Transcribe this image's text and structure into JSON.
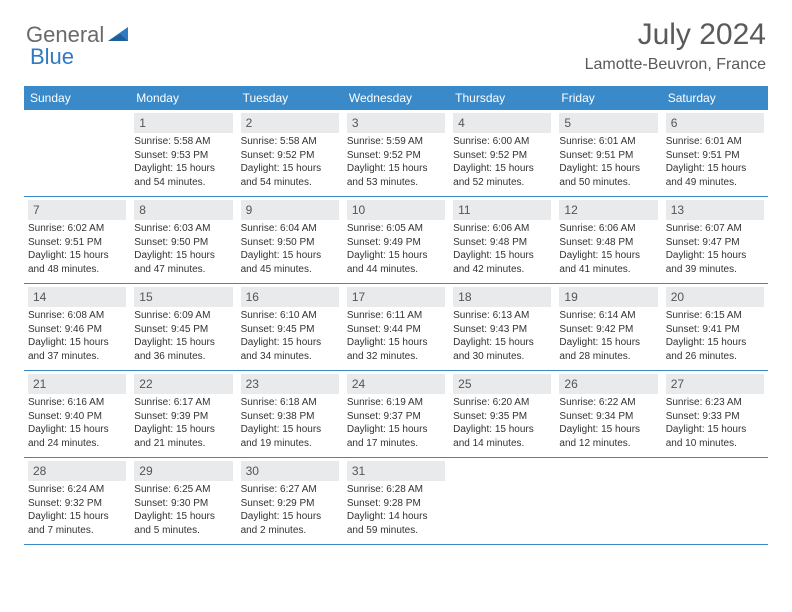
{
  "logo": {
    "part1": "General",
    "part2": "Blue"
  },
  "title": "July 2024",
  "subtitle": "Lamotte-Beuvron, France",
  "colors": {
    "header_bg": "#3a89c9",
    "header_text": "#ffffff",
    "daynum_bg": "#e9eaec",
    "border": "#3a89c9",
    "logo_gray": "#6a6a6a",
    "logo_blue": "#2f7bc2"
  },
  "day_names": [
    "Sunday",
    "Monday",
    "Tuesday",
    "Wednesday",
    "Thursday",
    "Friday",
    "Saturday"
  ],
  "weeks": [
    [
      null,
      {
        "n": "1",
        "sr": "Sunrise: 5:58 AM",
        "ss": "Sunset: 9:53 PM",
        "dl1": "Daylight: 15 hours",
        "dl2": "and 54 minutes."
      },
      {
        "n": "2",
        "sr": "Sunrise: 5:58 AM",
        "ss": "Sunset: 9:52 PM",
        "dl1": "Daylight: 15 hours",
        "dl2": "and 54 minutes."
      },
      {
        "n": "3",
        "sr": "Sunrise: 5:59 AM",
        "ss": "Sunset: 9:52 PM",
        "dl1": "Daylight: 15 hours",
        "dl2": "and 53 minutes."
      },
      {
        "n": "4",
        "sr": "Sunrise: 6:00 AM",
        "ss": "Sunset: 9:52 PM",
        "dl1": "Daylight: 15 hours",
        "dl2": "and 52 minutes."
      },
      {
        "n": "5",
        "sr": "Sunrise: 6:01 AM",
        "ss": "Sunset: 9:51 PM",
        "dl1": "Daylight: 15 hours",
        "dl2": "and 50 minutes."
      },
      {
        "n": "6",
        "sr": "Sunrise: 6:01 AM",
        "ss": "Sunset: 9:51 PM",
        "dl1": "Daylight: 15 hours",
        "dl2": "and 49 minutes."
      }
    ],
    [
      {
        "n": "7",
        "sr": "Sunrise: 6:02 AM",
        "ss": "Sunset: 9:51 PM",
        "dl1": "Daylight: 15 hours",
        "dl2": "and 48 minutes."
      },
      {
        "n": "8",
        "sr": "Sunrise: 6:03 AM",
        "ss": "Sunset: 9:50 PM",
        "dl1": "Daylight: 15 hours",
        "dl2": "and 47 minutes."
      },
      {
        "n": "9",
        "sr": "Sunrise: 6:04 AM",
        "ss": "Sunset: 9:50 PM",
        "dl1": "Daylight: 15 hours",
        "dl2": "and 45 minutes."
      },
      {
        "n": "10",
        "sr": "Sunrise: 6:05 AM",
        "ss": "Sunset: 9:49 PM",
        "dl1": "Daylight: 15 hours",
        "dl2": "and 44 minutes."
      },
      {
        "n": "11",
        "sr": "Sunrise: 6:06 AM",
        "ss": "Sunset: 9:48 PM",
        "dl1": "Daylight: 15 hours",
        "dl2": "and 42 minutes."
      },
      {
        "n": "12",
        "sr": "Sunrise: 6:06 AM",
        "ss": "Sunset: 9:48 PM",
        "dl1": "Daylight: 15 hours",
        "dl2": "and 41 minutes."
      },
      {
        "n": "13",
        "sr": "Sunrise: 6:07 AM",
        "ss": "Sunset: 9:47 PM",
        "dl1": "Daylight: 15 hours",
        "dl2": "and 39 minutes."
      }
    ],
    [
      {
        "n": "14",
        "sr": "Sunrise: 6:08 AM",
        "ss": "Sunset: 9:46 PM",
        "dl1": "Daylight: 15 hours",
        "dl2": "and 37 minutes."
      },
      {
        "n": "15",
        "sr": "Sunrise: 6:09 AM",
        "ss": "Sunset: 9:45 PM",
        "dl1": "Daylight: 15 hours",
        "dl2": "and 36 minutes."
      },
      {
        "n": "16",
        "sr": "Sunrise: 6:10 AM",
        "ss": "Sunset: 9:45 PM",
        "dl1": "Daylight: 15 hours",
        "dl2": "and 34 minutes."
      },
      {
        "n": "17",
        "sr": "Sunrise: 6:11 AM",
        "ss": "Sunset: 9:44 PM",
        "dl1": "Daylight: 15 hours",
        "dl2": "and 32 minutes."
      },
      {
        "n": "18",
        "sr": "Sunrise: 6:13 AM",
        "ss": "Sunset: 9:43 PM",
        "dl1": "Daylight: 15 hours",
        "dl2": "and 30 minutes."
      },
      {
        "n": "19",
        "sr": "Sunrise: 6:14 AM",
        "ss": "Sunset: 9:42 PM",
        "dl1": "Daylight: 15 hours",
        "dl2": "and 28 minutes."
      },
      {
        "n": "20",
        "sr": "Sunrise: 6:15 AM",
        "ss": "Sunset: 9:41 PM",
        "dl1": "Daylight: 15 hours",
        "dl2": "and 26 minutes."
      }
    ],
    [
      {
        "n": "21",
        "sr": "Sunrise: 6:16 AM",
        "ss": "Sunset: 9:40 PM",
        "dl1": "Daylight: 15 hours",
        "dl2": "and 24 minutes."
      },
      {
        "n": "22",
        "sr": "Sunrise: 6:17 AM",
        "ss": "Sunset: 9:39 PM",
        "dl1": "Daylight: 15 hours",
        "dl2": "and 21 minutes."
      },
      {
        "n": "23",
        "sr": "Sunrise: 6:18 AM",
        "ss": "Sunset: 9:38 PM",
        "dl1": "Daylight: 15 hours",
        "dl2": "and 19 minutes."
      },
      {
        "n": "24",
        "sr": "Sunrise: 6:19 AM",
        "ss": "Sunset: 9:37 PM",
        "dl1": "Daylight: 15 hours",
        "dl2": "and 17 minutes."
      },
      {
        "n": "25",
        "sr": "Sunrise: 6:20 AM",
        "ss": "Sunset: 9:35 PM",
        "dl1": "Daylight: 15 hours",
        "dl2": "and 14 minutes."
      },
      {
        "n": "26",
        "sr": "Sunrise: 6:22 AM",
        "ss": "Sunset: 9:34 PM",
        "dl1": "Daylight: 15 hours",
        "dl2": "and 12 minutes."
      },
      {
        "n": "27",
        "sr": "Sunrise: 6:23 AM",
        "ss": "Sunset: 9:33 PM",
        "dl1": "Daylight: 15 hours",
        "dl2": "and 10 minutes."
      }
    ],
    [
      {
        "n": "28",
        "sr": "Sunrise: 6:24 AM",
        "ss": "Sunset: 9:32 PM",
        "dl1": "Daylight: 15 hours",
        "dl2": "and 7 minutes."
      },
      {
        "n": "29",
        "sr": "Sunrise: 6:25 AM",
        "ss": "Sunset: 9:30 PM",
        "dl1": "Daylight: 15 hours",
        "dl2": "and 5 minutes."
      },
      {
        "n": "30",
        "sr": "Sunrise: 6:27 AM",
        "ss": "Sunset: 9:29 PM",
        "dl1": "Daylight: 15 hours",
        "dl2": "and 2 minutes."
      },
      {
        "n": "31",
        "sr": "Sunrise: 6:28 AM",
        "ss": "Sunset: 9:28 PM",
        "dl1": "Daylight: 14 hours",
        "dl2": "and 59 minutes."
      },
      null,
      null,
      null
    ]
  ]
}
